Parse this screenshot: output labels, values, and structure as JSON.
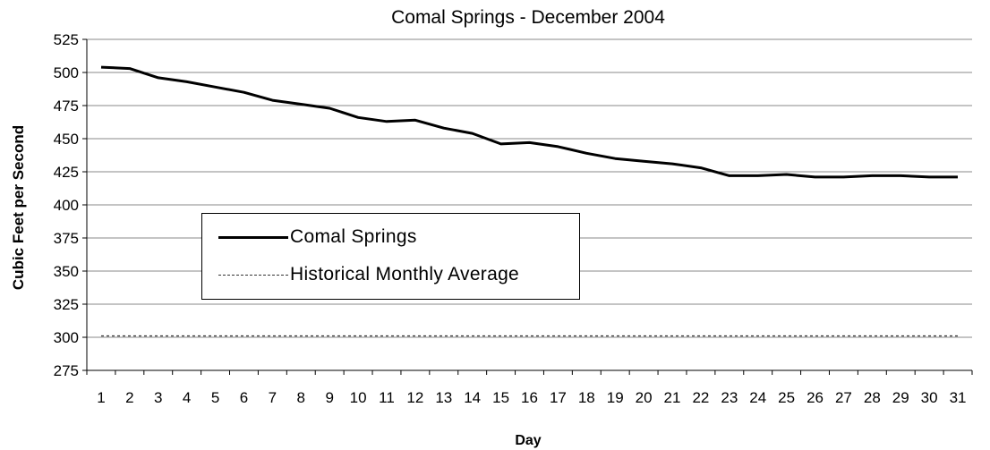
{
  "chart_data": {
    "type": "line",
    "title": "Comal Springs - December 2004",
    "xlabel": "Day",
    "ylabel": "Cubic Feet per Second",
    "ylim": [
      275,
      525
    ],
    "yticks": [
      275,
      300,
      325,
      350,
      375,
      400,
      425,
      450,
      475,
      500,
      525
    ],
    "categories": [
      "1",
      "2",
      "3",
      "4",
      "5",
      "6",
      "7",
      "8",
      "9",
      "10",
      "11",
      "12",
      "13",
      "14",
      "15",
      "16",
      "17",
      "18",
      "19",
      "20",
      "21",
      "22",
      "23",
      "24",
      "25",
      "26",
      "27",
      "28",
      "29",
      "30",
      "31"
    ],
    "grid": "horizontal",
    "legend_position": "inside-left",
    "series": [
      {
        "name": "Comal Springs",
        "style": "solid",
        "color": "#000000",
        "values": [
          504,
          503,
          496,
          493,
          489,
          485,
          479,
          476,
          473,
          466,
          463,
          464,
          458,
          454,
          446,
          447,
          444,
          439,
          435,
          433,
          431,
          428,
          422,
          422,
          423,
          421,
          421,
          422,
          422,
          421,
          421
        ]
      },
      {
        "name": "Historical Monthly Average",
        "style": "dotted",
        "color": "#333333",
        "values": [
          301,
          301,
          301,
          301,
          301,
          301,
          301,
          301,
          301,
          301,
          301,
          301,
          301,
          301,
          301,
          301,
          301,
          301,
          301,
          301,
          301,
          301,
          301,
          301,
          301,
          301,
          301,
          301,
          301,
          301,
          301
        ]
      }
    ]
  }
}
